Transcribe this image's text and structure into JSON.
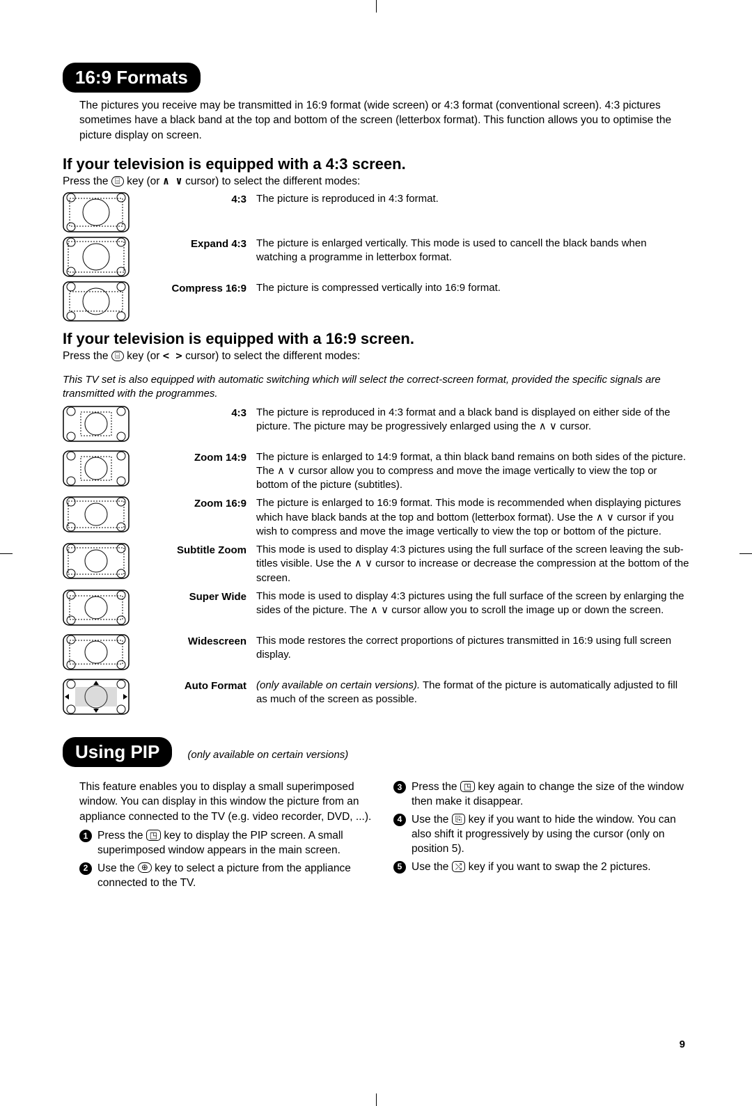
{
  "page_number": "9",
  "section1": {
    "badge": "16:9 Formats",
    "intro": "The pictures you receive may be transmitted in 16:9 format (wide screen) or 4:3 format (conventional screen). 4:3 pictures sometimes have a black band at the top and bottom of the screen (letterbox format). This function allows you to optimise the picture display on screen.",
    "sub43": {
      "heading": "If your television is equipped with a 4:3 screen.",
      "press_pre": "Press the ",
      "press_post": " key (or ",
      "cursor_sym": "∧ ∨",
      "press_tail": " cursor) to select the different modes:",
      "button_icon_label": "⌸",
      "modes": [
        {
          "label": "4:3",
          "desc": "The picture is reproduced in 4:3 format."
        },
        {
          "label": "Expand 4:3",
          "desc": "The picture is enlarged vertically. This mode is used to cancell the black bands when watching a programme in letterbox format."
        },
        {
          "label": "Compress 16:9",
          "desc": "The picture is compressed vertically into 16:9 format."
        }
      ]
    },
    "sub169": {
      "heading": "If your television is equipped with a 16:9 screen.",
      "press_pre": "Press the ",
      "press_post": " key (or ",
      "cursor_sym": "< >",
      "press_tail": " cursor) to select the different modes:",
      "button_icon_label": "⌸",
      "italic_note": "This TV set is also equipped with automatic switching which will select the correct-screen format, provided the specific signals are transmitted with the programmes.",
      "modes": [
        {
          "label": "4:3",
          "desc": "The picture is reproduced in 4:3 format and a black band is displayed on either side of the picture. The picture may be progressively enlarged using the ∧ ∨ cursor."
        },
        {
          "label": "Zoom 14:9",
          "desc": "The picture is enlarged to 14:9 format, a thin black band remains on both sides of the picture. The ∧ ∨ cursor allow you to compress and move the image vertically to view the top or bottom of the picture (subtitles)."
        },
        {
          "label": "Zoom 16:9",
          "desc": "The picture is enlarged to 16:9 format. This mode is recommended when displaying pictures which have black bands at the top and bottom (letterbox format). Use the ∧ ∨ cursor if you wish to compress and move the image vertically to view the top or bottom of the picture."
        },
        {
          "label": "Subtitle Zoom",
          "desc": "This mode is used to display 4:3 pictures using the full surface of the screen leaving the sub-titles visible. Use the ∧ ∨ cursor to increase or decrease the compression at the bottom of the screen."
        },
        {
          "label": "Super Wide",
          "desc": "This mode is used to display 4:3 pictures using the full surface of the screen by enlarging the sides of the picture. The ∧ ∨ cursor allow you to scroll the image up or down the screen."
        },
        {
          "label": "Widescreen",
          "desc": "This mode restores the correct proportions of pictures transmitted in 16:9 using full screen display."
        },
        {
          "label": "Auto Format",
          "desc_prefix_italic": "(only available on certain versions).",
          "desc": " The format of the picture is automatically adjusted to fill as much of the screen as possible."
        }
      ]
    }
  },
  "section2": {
    "badge": "Using PIP",
    "note_italic": "(only available on certain versions)",
    "intro": "This feature enables you to display a small superimposed window. You can display in this window the picture from an appliance connected to the TV (e.g. video recorder, DVD, ...).",
    "steps_left": [
      {
        "n": "1",
        "pre": "Press the ",
        "icon": "◳",
        "post": " key to display the PIP screen. A small superimposed window appears in the main screen."
      },
      {
        "n": "2",
        "pre": "Use the ",
        "icon": "⊕",
        "icon_oval": true,
        "post": " key to select a picture from the appliance connected to the TV."
      }
    ],
    "steps_right": [
      {
        "n": "3",
        "pre": "Press the ",
        "icon": "◳",
        "post": " key again to change the size of the window then make it disappear."
      },
      {
        "n": "4",
        "pre": "Use the ",
        "icon": "⎘",
        "post": " key if you want to hide the window. You can also shift it progressively by using the cursor (only on position 5)."
      },
      {
        "n": "5",
        "pre": "Use the ",
        "icon": "⤭",
        "post": " key if you want to swap the 2 pictures."
      }
    ]
  },
  "icons": {
    "tv_box_stroke": "#000000",
    "tv_box_fill": "#ffffff",
    "tv_dot_fill": "#ffffff"
  }
}
